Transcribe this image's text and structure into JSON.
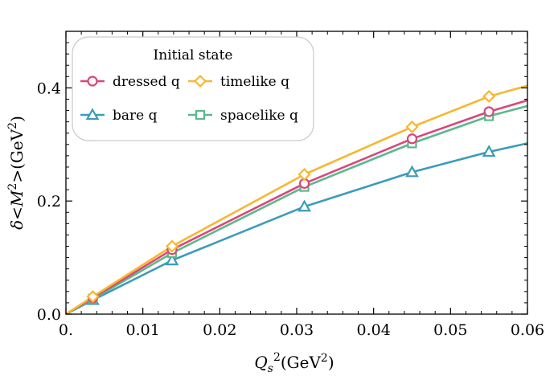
{
  "chart_data": {
    "type": "line",
    "xlabel": "Qs²(GeV²)",
    "ylabel": "δ<M²>(GeV²)",
    "xlim": [
      0,
      0.06
    ],
    "ylim": [
      0,
      0.5
    ],
    "x_ticks": [
      "0.",
      "0.01",
      "0.02",
      "0.03",
      "0.04",
      "0.05",
      "0.06"
    ],
    "y_ticks": [
      "0.0",
      "0.2",
      "0.4"
    ],
    "legend": {
      "title": "Initial state",
      "placement": "top-left",
      "columns": 2
    },
    "series": [
      {
        "name": "dressed q",
        "color": "#d9467a",
        "marker": "circle",
        "x": [
          0,
          0.0035,
          0.0138,
          0.031,
          0.045,
          0.055,
          0.06
        ],
        "y": [
          0,
          0.029,
          0.114,
          0.231,
          0.31,
          0.358,
          0.378
        ],
        "markers_x": [
          0.0035,
          0.0138,
          0.031,
          0.045,
          0.055
        ],
        "markers_y": [
          0.029,
          0.114,
          0.231,
          0.31,
          0.358
        ]
      },
      {
        "name": "timelike q",
        "color": "#f7b731",
        "marker": "diamond",
        "x": [
          0,
          0.0035,
          0.0138,
          0.031,
          0.045,
          0.055,
          0.06
        ],
        "y": [
          0,
          0.031,
          0.12,
          0.247,
          0.331,
          0.385,
          0.404
        ],
        "markers_x": [
          0.0035,
          0.0138,
          0.031,
          0.045,
          0.055
        ],
        "markers_y": [
          0.031,
          0.12,
          0.247,
          0.331,
          0.385
        ]
      },
      {
        "name": "bare q",
        "color": "#3d9bb9",
        "marker": "triangle",
        "x": [
          0,
          0.0035,
          0.0138,
          0.031,
          0.045,
          0.055,
          0.06
        ],
        "y": [
          0,
          0.025,
          0.095,
          0.19,
          0.251,
          0.287,
          0.302
        ],
        "markers_x": [
          0.0035,
          0.0138,
          0.031,
          0.045,
          0.055
        ],
        "markers_y": [
          0.025,
          0.095,
          0.19,
          0.251,
          0.287
        ]
      },
      {
        "name": "spacelike q",
        "color": "#5db88a",
        "marker": "square",
        "x": [
          0,
          0.0035,
          0.0138,
          0.031,
          0.045,
          0.055,
          0.06
        ],
        "y": [
          0,
          0.027,
          0.108,
          0.225,
          0.302,
          0.35,
          0.368
        ],
        "markers_x": [
          0.0035,
          0.0138,
          0.031,
          0.045,
          0.055
        ],
        "markers_y": [
          0.027,
          0.108,
          0.225,
          0.302,
          0.35
        ]
      }
    ]
  }
}
